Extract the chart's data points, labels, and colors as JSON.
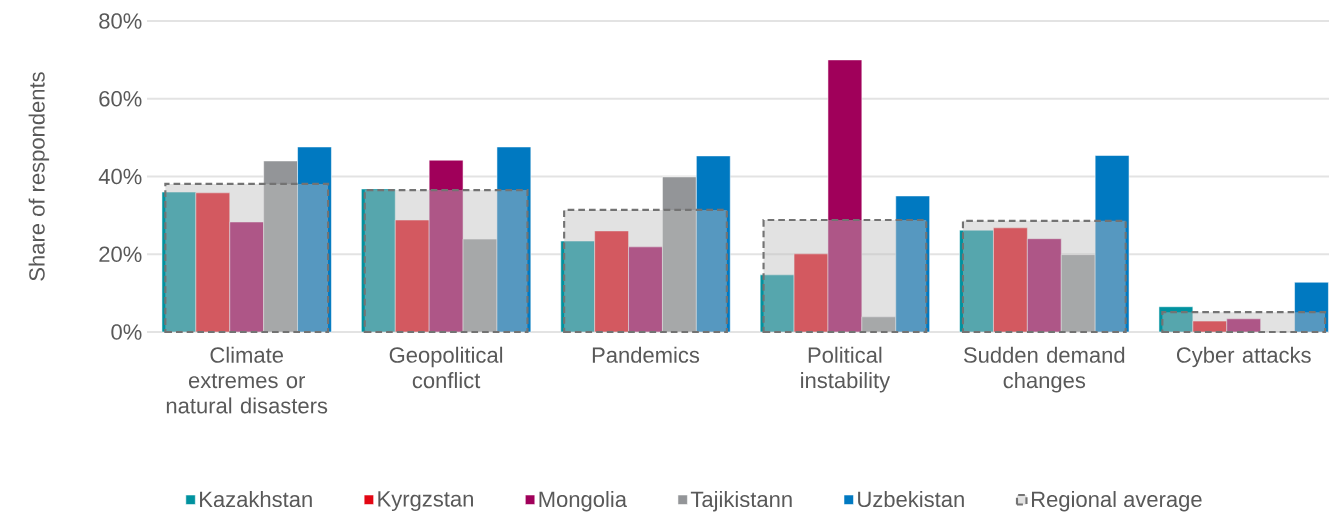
{
  "chart_data": {
    "type": "bar",
    "ylabel": "Share of respondents",
    "categories": [
      "Climate extremes or natural disasters",
      "Geopolitical conflict",
      "Pandemics",
      "Political instability",
      "Sudden demand changes",
      "Cyber attacks"
    ],
    "ylim": [
      0,
      80
    ],
    "yticks": [
      {
        "value": 0,
        "label": "0%"
      },
      {
        "value": 20,
        "label": "20%"
      },
      {
        "value": 40,
        "label": "40%"
      },
      {
        "value": 60,
        "label": "60%"
      },
      {
        "value": 80,
        "label": "80%"
      }
    ],
    "grid": "y",
    "legend": "bottom",
    "series": [
      {
        "name": "Kazakhstan",
        "color": "#00929f",
        "values": [
          36,
          36.8,
          23.4,
          14.7,
          26.2,
          6.5
        ]
      },
      {
        "name": "Kyrgzstan",
        "color": "#e30613",
        "values": [
          35.8,
          28.8,
          26,
          20.1,
          26.8,
          2.8
        ]
      },
      {
        "name": "Mongolia",
        "color": "#a0005a",
        "values": [
          28.3,
          44.2,
          21.9,
          70,
          24,
          3.4
        ]
      },
      {
        "name": "Tajikistann",
        "color": "#939598",
        "values": [
          44,
          23.9,
          39.9,
          3.9,
          19.9,
          null
        ]
      },
      {
        "name": "Uzbekistan",
        "color": "#0079c1",
        "values": [
          47.6,
          47.6,
          45.3,
          35,
          45.4,
          12.8
        ]
      },
      {
        "name": "Regional average",
        "color": "#bfbfbf",
        "line_style": "dashed",
        "values": [
          38.1,
          36.5,
          31.4,
          28.8,
          28.6,
          5.1
        ]
      }
    ]
  }
}
